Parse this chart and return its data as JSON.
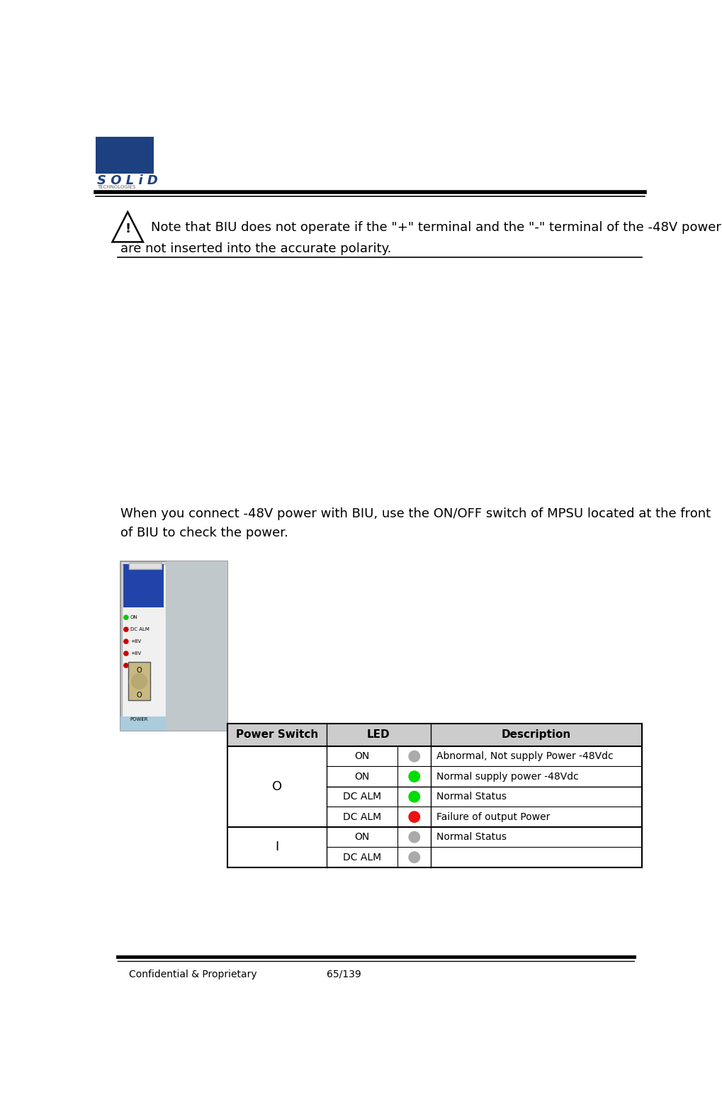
{
  "bg_color": "#ffffff",
  "solid_blue": "#1a3a6b",
  "footer_text_left": "Confidential & Proprietary",
  "footer_text_center": "65/139",
  "note_text_line1": "Note that BIU does not operate if the \"+\" terminal and the \"-\" terminal of the -48V power",
  "note_text_line2": "are not inserted into the accurate polarity.",
  "body_text_line1": "When you connect -48V power with BIU, use the ON/OFF switch of MPSU located at the front",
  "body_text_line2": "of BIU to check the power.",
  "table_col1_header": "Power Switch",
  "table_col2_header": "LED",
  "table_col3_header": "Description",
  "table_rows": [
    {
      "switch": "O",
      "led_label": "ON",
      "led_color": "#aaaaaa",
      "description": "Abnormal, Not supply Power -48Vdc"
    },
    {
      "switch": "O",
      "led_label": "ON",
      "led_color": "#00dd00",
      "description": "Normal supply power -48Vdc"
    },
    {
      "switch": "O",
      "led_label": "DC ALM",
      "led_color": "#00dd00",
      "description": "Normal Status"
    },
    {
      "switch": "O",
      "led_label": "DC ALM",
      "led_color": "#ee1111",
      "description": "Failure of output Power"
    },
    {
      "switch": "I",
      "led_label": "ON",
      "led_color": "#aaaaaa",
      "description": "Normal Status"
    },
    {
      "switch": "I",
      "led_label": "DC ALM",
      "led_color": "#aaaaaa",
      "description": ""
    }
  ],
  "font_size_body": 13,
  "font_size_table": 11,
  "font_size_footer": 10
}
